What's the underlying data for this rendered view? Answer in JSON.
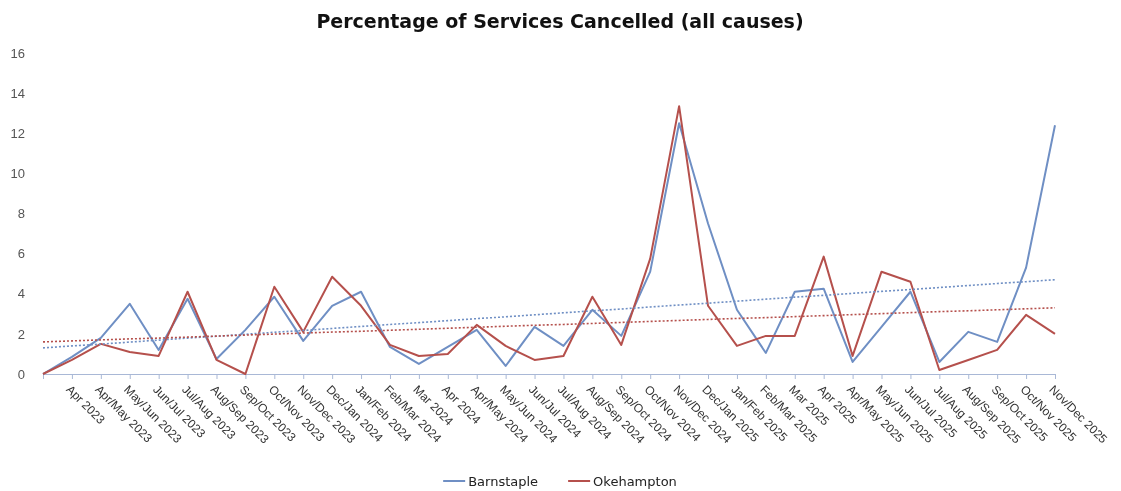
{
  "chart_data": {
    "type": "line",
    "title": "Percentage of Services Cancelled (all causes)",
    "categories": [
      null,
      "Apr 2023",
      "Apr/May 2023",
      "May/Jun 2023",
      "Jun/Jul 2023",
      "Jul/Aug 2023",
      "Aug/Sep 2023",
      "Sep/Oct 2023",
      "Oct/Nov 2023",
      "Nov/Dec 2023",
      "Dec/Jan 2024",
      "Jan/Feb 2024",
      "Feb/Mar 2024",
      "Mar 2024",
      "Apr 2024",
      "Apr/May 2024",
      "May/Jun 2024",
      "Jun/Jul 2024",
      "Jul/Aug 2024",
      "Aug/Sep 2024",
      "Sep/Oct 2024",
      "Oct/Nov 2024",
      "Nov/Dec 2024",
      "Dec/Jan 2025",
      "Jan/Feb 2025",
      "Feb/Mar 2025",
      "Mar 2025",
      "Apr 2025",
      "Apr/May 2025",
      "May/Jun 2025",
      "Jun/Jul 2025",
      "Jul/Aug 2025",
      "Aug/Sep 2025",
      "Sep/Oct 2025",
      "Oct/Nov 2025",
      "Nov/Dec 2025"
    ],
    "series": [
      {
        "name": "Barnstaple",
        "color": "#6f8fc4",
        "values": [
          0,
          0.85,
          1.8,
          3.5,
          1.2,
          3.75,
          0.75,
          2.2,
          3.85,
          1.65,
          3.4,
          4.1,
          1.35,
          0.5,
          1.35,
          2.2,
          0.4,
          2.35,
          1.4,
          3.2,
          1.9,
          5.1,
          12.5,
          7.5,
          3.2,
          1.05,
          4.1,
          4.25,
          0.6,
          2.35,
          4.1,
          0.6,
          2.1,
          1.6,
          5.3,
          12.4
        ]
      },
      {
        "name": "Okehampton",
        "color": "#b5504c",
        "values": [
          0,
          0.7,
          1.5,
          1.1,
          0.9,
          4.1,
          0.7,
          0,
          4.35,
          2.1,
          4.85,
          3.4,
          1.45,
          0.9,
          1.0,
          2.45,
          1.4,
          0.7,
          0.9,
          3.85,
          1.45,
          5.75,
          13.35,
          3.4,
          1.4,
          1.9,
          1.9,
          5.85,
          0.9,
          5.1,
          4.6,
          0.2,
          0.7,
          1.2,
          2.95,
          2.0
        ]
      },
      {
        "color": "#6f8fc4",
        "line_style": "dotted",
        "values": [
          1.3,
          1.4,
          1.49,
          1.59,
          1.69,
          1.79,
          1.88,
          1.98,
          2.08,
          2.17,
          2.27,
          2.37,
          2.47,
          2.56,
          2.66,
          2.76,
          2.85,
          2.95,
          3.05,
          3.15,
          3.24,
          3.34,
          3.44,
          3.53,
          3.63,
          3.73,
          3.83,
          3.92,
          4.02,
          4.12,
          4.21,
          4.31,
          4.41,
          4.51,
          4.6,
          4.7
        ]
      },
      {
        "color": "#b5504c",
        "line_style": "dotted",
        "values": [
          1.6,
          1.65,
          1.7,
          1.75,
          1.79,
          1.84,
          1.89,
          1.94,
          1.99,
          2.04,
          2.09,
          2.13,
          2.18,
          2.23,
          2.28,
          2.33,
          2.38,
          2.43,
          2.47,
          2.52,
          2.57,
          2.62,
          2.67,
          2.72,
          2.77,
          2.81,
          2.86,
          2.91,
          2.96,
          3.01,
          3.06,
          3.11,
          3.15,
          3.2,
          3.25,
          3.3
        ]
      }
    ],
    "ylim": [
      0,
      16
    ],
    "yticks": [
      0,
      2,
      4,
      6,
      8,
      10,
      12,
      14,
      16
    ],
    "legend": "bottom",
    "line_style": "solid"
  }
}
